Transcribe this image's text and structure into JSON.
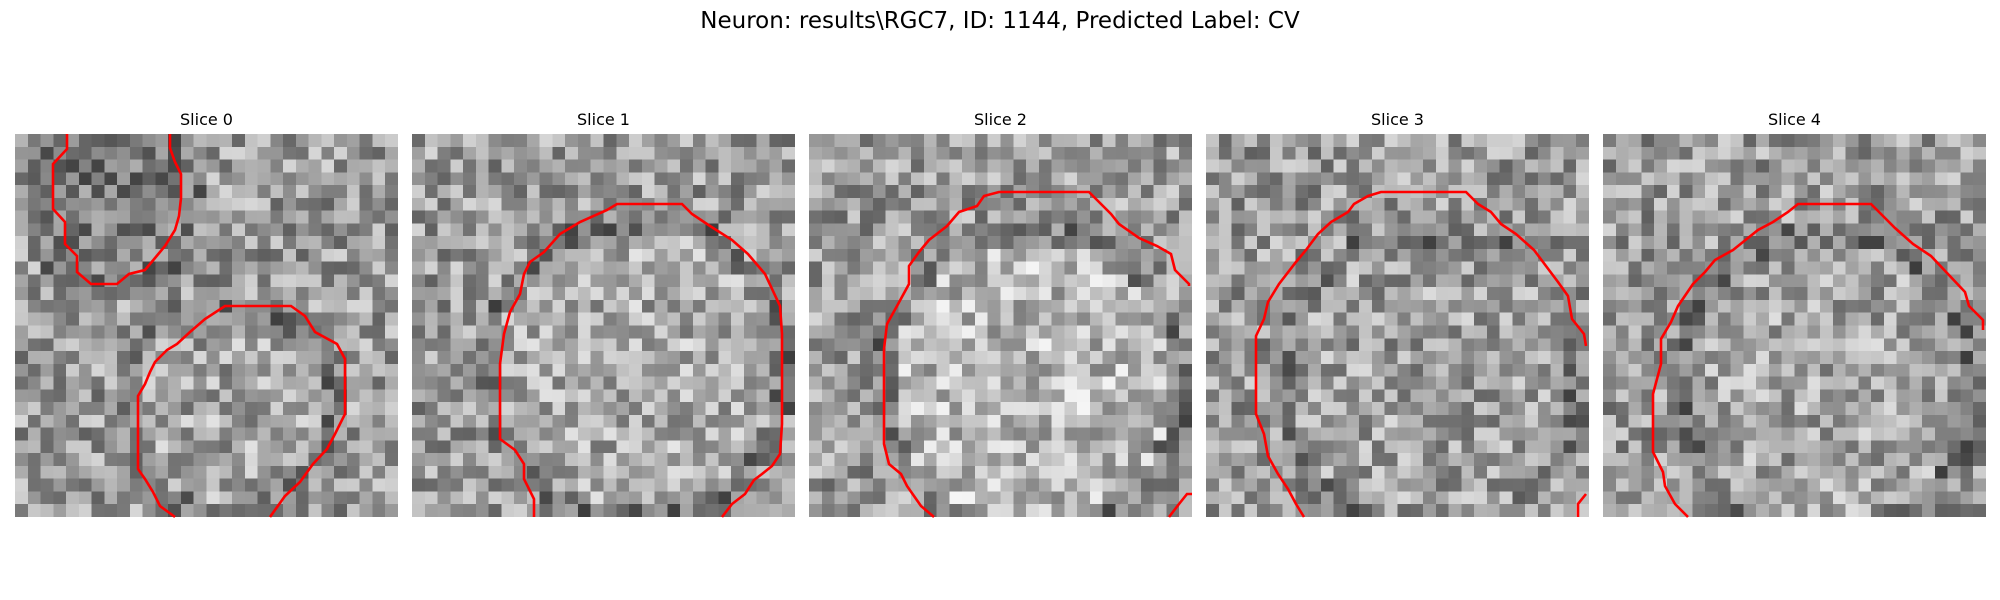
{
  "figure": {
    "title": "Neuron: results\\RGC7, ID: 1144, Predicted Label: CV"
  },
  "panels": [
    {
      "title": "Slice 0"
    },
    {
      "title": "Slice 1"
    },
    {
      "title": "Slice 2"
    },
    {
      "title": "Slice 3"
    },
    {
      "title": "Slice 4"
    }
  ],
  "colors": {
    "contour": "#ff0000",
    "background": "#ffffff"
  }
}
